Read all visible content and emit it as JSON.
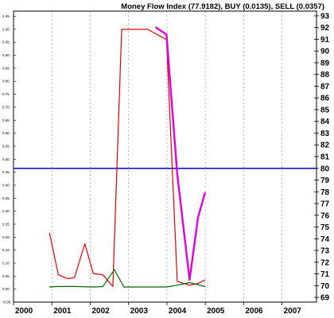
{
  "chart_data": {
    "type": "line",
    "title": "Money Flow Index (77.9182), BUY (0.0135), SELL (0.0357)",
    "x_tick_labels": [
      "2000",
      "2001",
      "2002",
      "2003",
      "2004",
      "2005",
      "2006",
      "2007"
    ],
    "xlim": [
      2000,
      2007.9
    ],
    "left_axis": {
      "ylim": [
        -0.05,
        1.07
      ],
      "tick_labels": [
        "-0.05",
        "0.00",
        "0.05",
        "0.10",
        "0.15",
        "0.20",
        "0.25",
        "0.30",
        "0.35",
        "0.40",
        "0.45",
        "0.50",
        "0.55",
        "0.60",
        "0.65",
        "0.70",
        "0.75",
        "0.80",
        "0.85",
        "0.90",
        "0.95",
        "1.00",
        "1.05"
      ]
    },
    "right_axis": {
      "ylim": [
        68.6,
        93.4
      ],
      "tick_labels": [
        "69",
        "70",
        "71",
        "72",
        "73",
        "74",
        "75",
        "76",
        "77",
        "78",
        "79",
        "80",
        "81",
        "82",
        "83",
        "84",
        "85",
        "86",
        "87",
        "88",
        "89",
        "90",
        "91",
        "92",
        "93"
      ]
    },
    "reference_line": {
      "axis": "right",
      "value": 80,
      "color": "#0000cc"
    },
    "grid": "vertical dashed at each year",
    "series": [
      {
        "axis": "left",
        "color": "#dd0000",
        "x": [
          2000.94,
          2001.17,
          2001.42,
          2001.59,
          2001.86,
          2002.08,
          2002.33,
          2002.59,
          2002.82,
          2003.17,
          2003.5,
          2003.99,
          2004.27,
          2004.59,
          2004.81,
          2004.99
        ],
        "y": [
          0.215,
          0.055,
          0.04,
          0.045,
          0.175,
          0.06,
          0.055,
          0.01,
          1.0,
          1.0,
          1.0,
          0.96,
          0.03,
          0.015,
          0.022,
          0.035
        ]
      },
      {
        "axis": "left",
        "color": "#006600",
        "x": [
          2000.94,
          2001.17,
          2001.59,
          2002.08,
          2002.33,
          2002.63,
          2002.88,
          2003.5,
          2003.99,
          2004.27,
          2004.59,
          2004.99
        ],
        "y": [
          0.008,
          0.01,
          0.01,
          0.008,
          0.01,
          0.075,
          0.008,
          0.008,
          0.008,
          0.015,
          0.025,
          0.01
        ]
      },
      {
        "axis": "right",
        "color": "#dd00dd",
        "x": [
          2003.72,
          2003.99,
          2004.27,
          2004.59,
          2004.81,
          2004.99
        ],
        "y": [
          92.0,
          91.4,
          79.5,
          70.5,
          75.8,
          77.9
        ]
      }
    ]
  }
}
